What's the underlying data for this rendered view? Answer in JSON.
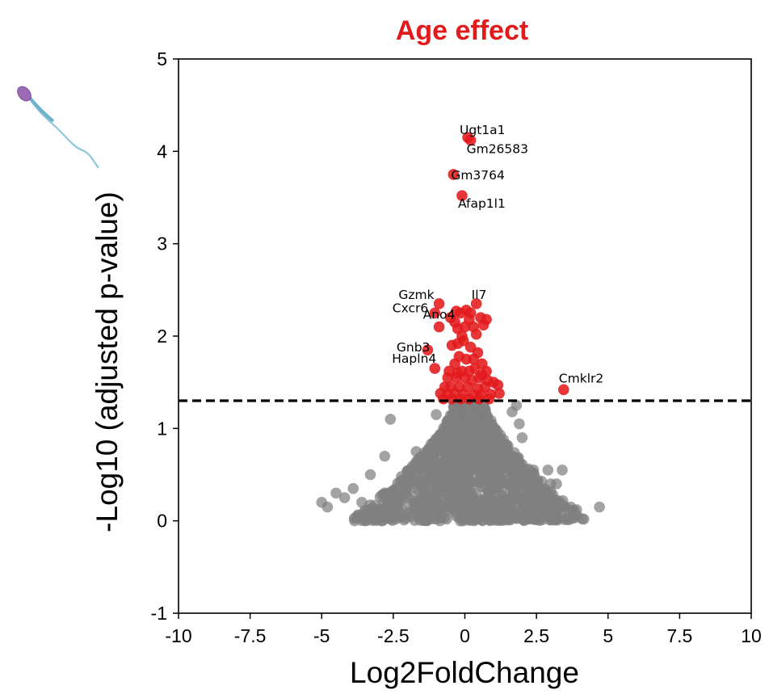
{
  "chart_data": {
    "type": "scatter",
    "title": "Age effect",
    "xlabel": "Log2FoldChange",
    "ylabel": "-Log10 (adjusted p-value)",
    "xlim": [
      -10,
      10
    ],
    "ylim": [
      -1,
      5
    ],
    "xticks": [
      -10,
      -7.5,
      -5,
      -2.5,
      0,
      2.5,
      5,
      7.5,
      10
    ],
    "xtick_labels": [
      "-10",
      "-7.5",
      "-5",
      "-2.5",
      "0",
      "2.5",
      "5",
      "7.5",
      "10"
    ],
    "yticks": [
      -1,
      0,
      1,
      2,
      3,
      4,
      5
    ],
    "ytick_labels": [
      "-1",
      "0",
      "1",
      "2",
      "3",
      "4",
      "5"
    ],
    "threshold": 1.3,
    "colors": {
      "title": "#e31a1c",
      "significant": "#e31a1c",
      "nonsignificant": "#808080",
      "threshold_line": "#000000"
    },
    "labeled_genes": [
      {
        "gene": "Ugt1a1",
        "x": 0.1,
        "y": 4.15
      },
      {
        "gene": "Gm26583",
        "x": 0.2,
        "y": 4.12
      },
      {
        "gene": "Gm3764",
        "x": -0.4,
        "y": 3.75
      },
      {
        "gene": "Afap1l1",
        "x": -0.1,
        "y": 3.52
      },
      {
        "gene": "Gzmk",
        "x": -0.9,
        "y": 2.35
      },
      {
        "gene": "Il7",
        "x": 0.4,
        "y": 2.35
      },
      {
        "gene": "Cxcr6",
        "x": -1.05,
        "y": 2.25
      },
      {
        "gene": "Ano4",
        "x": -0.9,
        "y": 2.1
      },
      {
        "gene": "Gnb3",
        "x": -1.3,
        "y": 1.85
      },
      {
        "gene": "Hapln4",
        "x": -1.05,
        "y": 1.65
      },
      {
        "gene": "Cmklr2",
        "x": 3.45,
        "y": 1.42
      }
    ],
    "significant_points": [
      [
        -0.5,
        2.2
      ],
      [
        -0.3,
        2.27
      ],
      [
        -0.15,
        2.25
      ],
      [
        0.05,
        2.28
      ],
      [
        0.2,
        2.25
      ],
      [
        -0.35,
        2.15
      ],
      [
        0.15,
        2.18
      ],
      [
        0.55,
        2.2
      ],
      [
        0.75,
        2.18
      ],
      [
        -0.25,
        2.08
      ],
      [
        0.0,
        2.1
      ],
      [
        0.3,
        2.1
      ],
      [
        0.65,
        2.12
      ],
      [
        -0.1,
        2.0
      ],
      [
        0.4,
        2.02
      ],
      [
        -0.45,
        1.9
      ],
      [
        -0.25,
        1.92
      ],
      [
        -0.05,
        1.95
      ],
      [
        0.2,
        1.88
      ],
      [
        -0.2,
        1.78
      ],
      [
        0.05,
        1.75
      ],
      [
        0.45,
        1.82
      ],
      [
        -0.35,
        1.7
      ],
      [
        0.6,
        1.7
      ],
      [
        -0.1,
        1.62
      ],
      [
        0.15,
        1.62
      ],
      [
        0.35,
        1.65
      ],
      [
        0.6,
        1.58
      ],
      [
        -0.6,
        1.55
      ],
      [
        -0.3,
        1.55
      ],
      [
        0.0,
        1.55
      ],
      [
        0.25,
        1.52
      ],
      [
        0.8,
        1.52
      ],
      [
        1.0,
        1.5
      ],
      [
        -0.7,
        1.45
      ],
      [
        -0.5,
        1.45
      ],
      [
        -0.2,
        1.45
      ],
      [
        0.1,
        1.45
      ],
      [
        0.45,
        1.43
      ],
      [
        0.7,
        1.45
      ],
      [
        1.15,
        1.47
      ],
      [
        -0.85,
        1.38
      ],
      [
        -0.6,
        1.37
      ],
      [
        -0.35,
        1.38
      ],
      [
        -0.05,
        1.37
      ],
      [
        0.3,
        1.36
      ],
      [
        0.55,
        1.37
      ],
      [
        0.9,
        1.37
      ],
      [
        1.2,
        1.38
      ],
      [
        -0.75,
        1.32
      ],
      [
        -0.45,
        1.32
      ],
      [
        -0.15,
        1.32
      ],
      [
        0.15,
        1.32
      ],
      [
        0.5,
        1.32
      ],
      [
        0.85,
        1.32
      ],
      [
        -0.25,
        1.6
      ],
      [
        0.3,
        1.75
      ],
      [
        -0.55,
        1.62
      ],
      [
        0.75,
        1.62
      ],
      [
        0.5,
        1.55
      ]
    ],
    "nonsignificant_outliers": [
      [
        -5.0,
        0.2
      ],
      [
        -4.8,
        0.15
      ],
      [
        -4.5,
        0.3
      ],
      [
        -4.2,
        0.25
      ],
      [
        -3.9,
        0.35
      ],
      [
        -3.6,
        0.2
      ],
      [
        -3.3,
        0.5
      ],
      [
        -2.8,
        0.7
      ],
      [
        -1.0,
        1.15
      ],
      [
        -2.6,
        1.1
      ],
      [
        -1.7,
        0.75
      ],
      [
        2.9,
        0.55
      ],
      [
        3.0,
        0.4
      ],
      [
        3.2,
        0.4
      ],
      [
        3.4,
        0.55
      ],
      [
        3.7,
        0.15
      ],
      [
        3.9,
        0.12
      ],
      [
        4.7,
        0.15
      ],
      [
        2.5,
        0.3
      ],
      [
        2.7,
        0.15
      ],
      [
        2.0,
        0.9
      ],
      [
        1.9,
        1.05
      ],
      [
        1.8,
        1.25
      ],
      [
        1.65,
        1.18
      ],
      [
        2.4,
        0.55
      ]
    ]
  }
}
